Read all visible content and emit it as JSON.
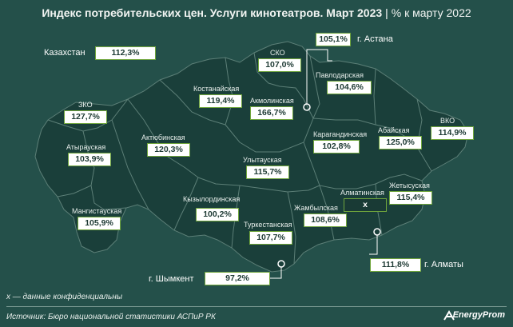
{
  "title": {
    "main": "Индекс потребительских цен. Услуги кинотеатров. Март 2023",
    "separator": "|",
    "sub": "% к марту 2022"
  },
  "country": {
    "name": "Казахстан",
    "value": "112,3%"
  },
  "regions": [
    {
      "id": "sko",
      "name": "СКО",
      "value": "107,0%"
    },
    {
      "id": "kostanay",
      "name": "Костанайская",
      "value": "119,4%"
    },
    {
      "id": "akmola",
      "name": "Акмолинская",
      "value": "166,7%"
    },
    {
      "id": "pavlodar",
      "name": "Павлодарская",
      "value": "104,6%"
    },
    {
      "id": "zko",
      "name": "ЗКО",
      "value": "127,7%"
    },
    {
      "id": "aktobe",
      "name": "Актюбинская",
      "value": "120,3%"
    },
    {
      "id": "karaganda",
      "name": "Карагандинская",
      "value": "102,8%"
    },
    {
      "id": "abay",
      "name": "Абайская",
      "value": "125,0%"
    },
    {
      "id": "vko",
      "name": "ВКО",
      "value": "114,9%"
    },
    {
      "id": "atyrau",
      "name": "Атырауская",
      "value": "103,9%"
    },
    {
      "id": "ulytau",
      "name": "Улытауская",
      "value": "115,7%"
    },
    {
      "id": "zhetysu",
      "name": "Жетысуская",
      "value": "115,4%"
    },
    {
      "id": "almaty-reg",
      "name": "Алматинская",
      "value": "x"
    },
    {
      "id": "kyzylorda",
      "name": "Кызылординская",
      "value": "100,2%"
    },
    {
      "id": "zhambyl",
      "name": "Жамбылская",
      "value": "108,6%"
    },
    {
      "id": "mangystau",
      "name": "Мангистауская",
      "value": "105,9%"
    },
    {
      "id": "turkestan",
      "name": "Туркестанская",
      "value": "107,7%"
    }
  ],
  "cities": [
    {
      "id": "astana",
      "name": "г. Астана",
      "value": "105,1%"
    },
    {
      "id": "shymkent",
      "name": "г. Шымкент",
      "value": "97,2%"
    },
    {
      "id": "almaty",
      "name": "г. Алматы",
      "value": "111,8%"
    }
  ],
  "footnote": "x — данные конфиденциальны",
  "source": "Источник: Бюро национальной статистики АСПиР РК",
  "brand": "EnergyProm",
  "colors": {
    "land": "#1a3f3a",
    "border": "#5c7f77",
    "background": "#24504a",
    "box_border": "#6fa53c"
  }
}
